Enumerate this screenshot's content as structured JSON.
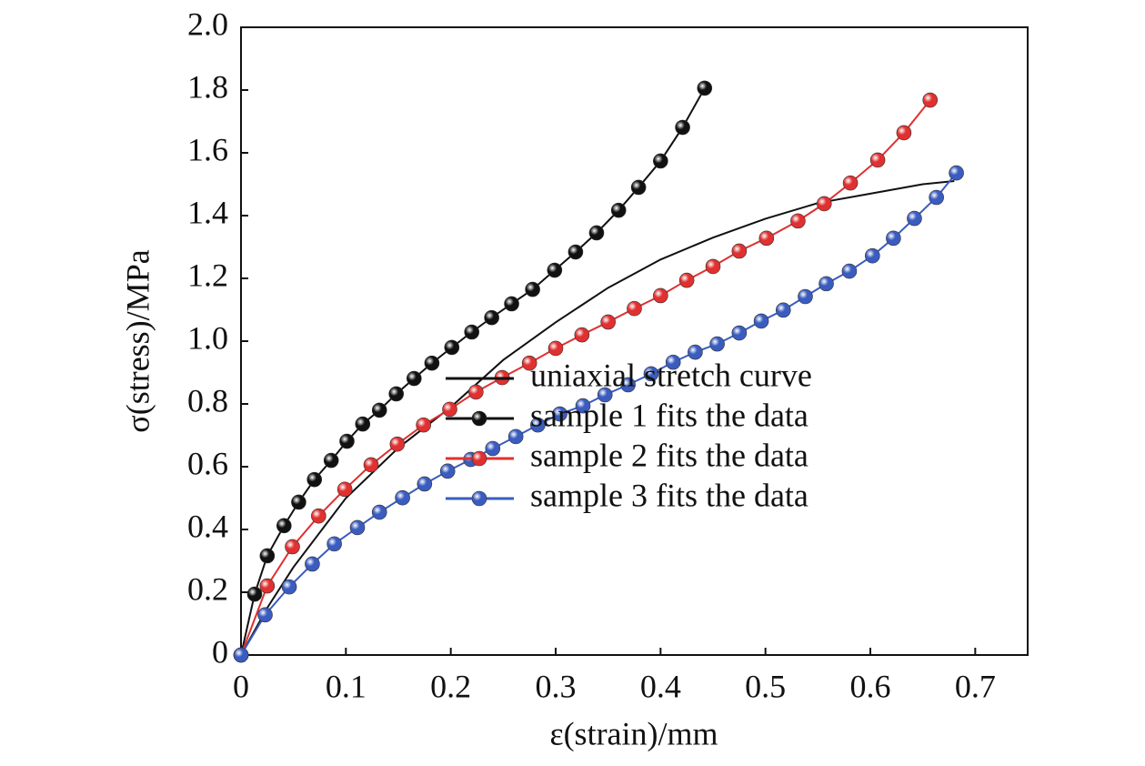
{
  "chart_data": {
    "type": "line",
    "xlabel": "ε(strain)/mm",
    "ylabel": "σ(stress)/MPa",
    "xlim": [
      0,
      0.75
    ],
    "ylim": [
      0,
      2
    ],
    "xticks": [
      0,
      0.1,
      0.2,
      0.3,
      0.4,
      0.5,
      0.6,
      0.7
    ],
    "yticks": [
      0,
      0.2,
      0.4,
      0.6,
      0.8,
      {
        "value": 1,
        "label": "1.0"
      },
      1.2,
      1.4,
      1.6,
      1.8,
      {
        "value": 2,
        "label": "2.0"
      }
    ],
    "grid": false,
    "legend": "lower right",
    "series": [
      {
        "name": "uniaxial stretch curve",
        "color": "#111111",
        "marker": "none",
        "x": [
          0,
          0.01,
          0.025,
          0.05,
          0.1,
          0.15,
          0.2,
          0.25,
          0.3,
          0.35,
          0.4,
          0.45,
          0.5,
          0.55,
          0.6,
          0.65,
          0.68
        ],
        "values": [
          0,
          0.06,
          0.15,
          0.28,
          0.5,
          0.66,
          0.79,
          0.94,
          1.06,
          1.17,
          1.26,
          1.33,
          1.39,
          1.44,
          1.47,
          1.5,
          1.51
        ]
      },
      {
        "name": "sample 1 fits the data",
        "color": "#111111",
        "marker": "circle",
        "x": [
          0,
          0.013,
          0.025,
          0.041,
          0.055,
          0.07,
          0.086,
          0.101,
          0.116,
          0.132,
          0.148,
          0.165,
          0.182,
          0.201,
          0.22,
          0.239,
          0.258,
          0.278,
          0.299,
          0.319,
          0.339,
          0.36,
          0.379,
          0.4,
          0.421,
          0.442
        ],
        "values": [
          0,
          0.194,
          0.316,
          0.412,
          0.487,
          0.559,
          0.62,
          0.681,
          0.736,
          0.78,
          0.832,
          0.881,
          0.93,
          0.98,
          1.029,
          1.075,
          1.119,
          1.165,
          1.226,
          1.284,
          1.345,
          1.417,
          1.49,
          1.574,
          1.681,
          1.806
        ]
      },
      {
        "name": "sample 2 fits the data",
        "color": "#e03030",
        "marker": "circle",
        "x": [
          0,
          0.025,
          0.049,
          0.074,
          0.099,
          0.124,
          0.149,
          0.174,
          0.199,
          0.224,
          0.249,
          0.275,
          0.3,
          0.325,
          0.35,
          0.375,
          0.4,
          0.425,
          0.45,
          0.475,
          0.501,
          0.531,
          0.556,
          0.581,
          0.607,
          0.632,
          0.657
        ],
        "values": [
          0,
          0.22,
          0.345,
          0.443,
          0.528,
          0.606,
          0.672,
          0.733,
          0.783,
          0.838,
          0.884,
          0.93,
          0.977,
          1.02,
          1.061,
          1.104,
          1.145,
          1.194,
          1.238,
          1.287,
          1.328,
          1.383,
          1.438,
          1.504,
          1.577,
          1.664,
          1.768
        ]
      },
      {
        "name": "sample 3 fits the data",
        "color": "#3a5cc0",
        "marker": "circle",
        "x": [
          0,
          0.023,
          0.046,
          0.068,
          0.089,
          0.111,
          0.132,
          0.154,
          0.175,
          0.197,
          0.219,
          0.24,
          0.262,
          0.283,
          0.304,
          0.326,
          0.347,
          0.369,
          0.391,
          0.412,
          0.433,
          0.454,
          0.475,
          0.496,
          0.517,
          0.538,
          0.558,
          0.58,
          0.602,
          0.622,
          0.642,
          0.663,
          0.682
        ],
        "values": [
          0,
          0.128,
          0.217,
          0.29,
          0.354,
          0.406,
          0.455,
          0.501,
          0.545,
          0.586,
          0.623,
          0.658,
          0.696,
          0.733,
          0.768,
          0.794,
          0.829,
          0.861,
          0.896,
          0.933,
          0.965,
          0.991,
          1.026,
          1.064,
          1.099,
          1.142,
          1.183,
          1.223,
          1.272,
          1.328,
          1.391,
          1.458,
          1.536
        ]
      }
    ]
  }
}
